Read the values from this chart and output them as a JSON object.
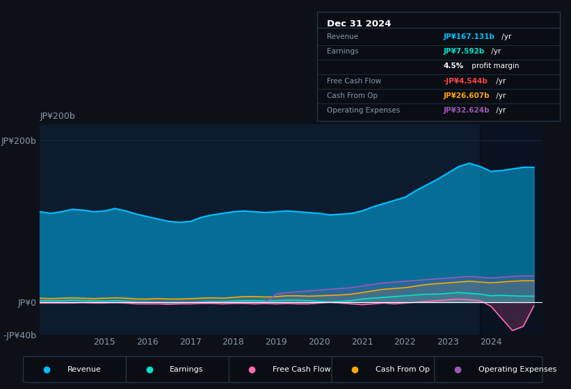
{
  "bg_color": "#0d1117",
  "plot_bg": "#0d1b2e",
  "grid_color": "#1e3050",
  "zero_line_color": "#ffffff",
  "years": [
    2013.0,
    2013.25,
    2013.5,
    2013.75,
    2014.0,
    2014.25,
    2014.5,
    2014.75,
    2015.0,
    2015.25,
    2015.5,
    2015.75,
    2016.0,
    2016.25,
    2016.5,
    2016.75,
    2017.0,
    2017.25,
    2017.5,
    2017.75,
    2018.0,
    2018.25,
    2018.5,
    2018.75,
    2019.0,
    2019.25,
    2019.5,
    2019.75,
    2020.0,
    2020.25,
    2020.5,
    2020.75,
    2021.0,
    2021.25,
    2021.5,
    2021.75,
    2022.0,
    2022.25,
    2022.5,
    2022.75,
    2023.0,
    2023.25,
    2023.5,
    2023.75,
    2024.0,
    2024.25,
    2024.5,
    2024.75,
    2025.0
  ],
  "revenue": [
    105,
    108,
    112,
    110,
    112,
    115,
    114,
    112,
    113,
    116,
    113,
    109,
    106,
    103,
    100,
    99,
    100,
    105,
    108,
    110,
    112,
    113,
    112,
    111,
    112,
    113,
    112,
    111,
    110,
    108,
    109,
    110,
    113,
    118,
    122,
    126,
    130,
    138,
    145,
    152,
    160,
    168,
    172,
    168,
    162,
    163,
    165,
    167,
    167
  ],
  "earnings": [
    2,
    1.5,
    2,
    1.8,
    2,
    2.5,
    2.2,
    1.5,
    1.5,
    2,
    1.5,
    0.5,
    0.5,
    0,
    -0.5,
    -0.5,
    0,
    0.5,
    1,
    1,
    1.5,
    2,
    2,
    1.5,
    2,
    2.5,
    2.5,
    2,
    1,
    0.5,
    1,
    2,
    4,
    5,
    6,
    7,
    8,
    9,
    10,
    10,
    11,
    12,
    11,
    10,
    8,
    8.5,
    8,
    7.5,
    7.5
  ],
  "free_cash_flow": [
    -1,
    -0.5,
    -1,
    -1,
    -1,
    -1,
    -0.5,
    -1,
    -1,
    -0.5,
    -1,
    -2,
    -2,
    -2,
    -2.5,
    -2,
    -2,
    -1.5,
    -1.5,
    -2,
    -1.5,
    -1.5,
    -2,
    -1.5,
    -2,
    -1.5,
    -2,
    -2,
    -1,
    0,
    -1,
    -2,
    -3,
    -2,
    -1,
    -2,
    -1,
    0,
    1,
    2,
    3,
    4,
    3,
    2,
    -5,
    -20,
    -35,
    -30,
    -4.5
  ],
  "cash_from_op": [
    4,
    4.5,
    5,
    4.5,
    5,
    5.5,
    5,
    4.5,
    5,
    5.5,
    5,
    4,
    4,
    4.5,
    4,
    4,
    4.5,
    5,
    5.5,
    5,
    6,
    7,
    7,
    6.5,
    7,
    8,
    8,
    7.5,
    8,
    8.5,
    9,
    10,
    12,
    14,
    16,
    17,
    18,
    20,
    22,
    23,
    24,
    25,
    26,
    25,
    24,
    25,
    26,
    26.6,
    26.6
  ],
  "op_expenses": [
    0,
    0,
    0,
    0,
    0,
    0,
    0,
    0,
    0,
    0,
    0,
    0,
    0,
    0,
    0,
    0,
    0,
    0,
    0,
    0,
    0,
    0,
    0,
    0,
    10,
    12,
    13,
    14,
    15,
    16,
    17,
    18,
    20,
    22,
    24,
    25,
    26,
    27,
    28,
    29,
    30,
    31,
    32,
    31,
    30,
    31,
    32,
    32.6,
    32.6
  ],
  "forecast_start": 2023.75,
  "ylim_min": -40,
  "ylim_max": 220,
  "yticks": [
    -40,
    0,
    200
  ],
  "ytick_labels": [
    "-JP¥40b",
    "JP¥0",
    "JP¥200b"
  ],
  "xlim_min": 2013.5,
  "xlim_max": 2025.2,
  "xticks": [
    2015,
    2016,
    2017,
    2018,
    2019,
    2020,
    2021,
    2022,
    2023,
    2024
  ],
  "revenue_color": "#00bfff",
  "earnings_color": "#00e5cc",
  "fcf_color": "#ff69b4",
  "cashop_color": "#ffa500",
  "opex_color": "#9b59b6",
  "info_box": {
    "title": "Dec 31 2024",
    "revenue_label": "Revenue",
    "revenue_value": "JP¥167.131b /yr",
    "earnings_label": "Earnings",
    "earnings_value": "JP¥7.592b /yr",
    "margin_value": "4.5% profit margin",
    "fcf_label": "Free Cash Flow",
    "fcf_value": "-JP¥4.544b /yr",
    "cashop_label": "Cash From Op",
    "cashop_value": "JP¥26.607b /yr",
    "opex_label": "Operating Expenses",
    "opex_value": "JP¥32.624b /yr"
  },
  "legend_items": [
    {
      "label": "Revenue",
      "color": "#00bfff"
    },
    {
      "label": "Earnings",
      "color": "#00e5cc"
    },
    {
      "label": "Free Cash Flow",
      "color": "#ff69b4"
    },
    {
      "label": "Cash From Op",
      "color": "#ffa500"
    },
    {
      "label": "Operating Expenses",
      "color": "#9b59b6"
    }
  ]
}
